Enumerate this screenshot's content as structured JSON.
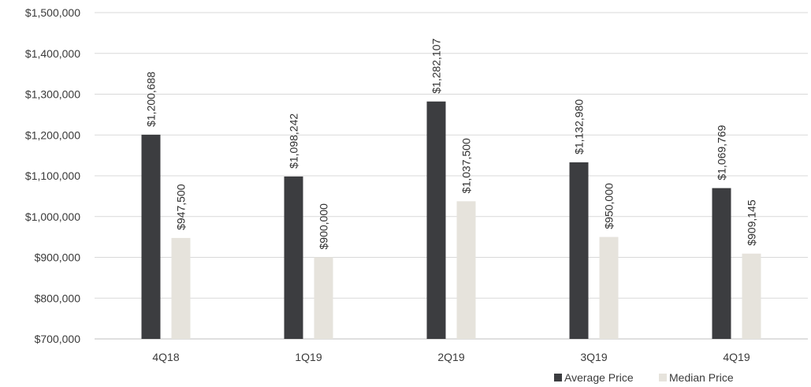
{
  "chart_data": {
    "type": "bar",
    "categories": [
      "4Q18",
      "1Q19",
      "2Q19",
      "3Q19",
      "4Q19"
    ],
    "series": [
      {
        "name": "Average Price",
        "color": "#3c3d40",
        "values": [
          1200688,
          1098242,
          1282107,
          1132980,
          1069769
        ],
        "labels": [
          "$1,200,688",
          "$1,098,242",
          "$1,282,107",
          "$1,132,980",
          "$1,069,769"
        ]
      },
      {
        "name": "Median Price",
        "color": "#e6e3dc",
        "values": [
          947500,
          900000,
          1037500,
          950000,
          909145
        ],
        "labels": [
          "$947,500",
          "$900,000",
          "$1,037,500",
          "$950,000",
          "$909,145"
        ]
      }
    ],
    "ylim": [
      700000,
      1500000
    ],
    "yticks": [
      700000,
      800000,
      900000,
      1000000,
      1100000,
      1200000,
      1300000,
      1400000,
      1500000
    ],
    "ytick_labels": [
      "$700,000",
      "$800,000",
      "$900,000",
      "$1,000,000",
      "$1,100,000",
      "$1,200,000",
      "$1,300,000",
      "$1,400,000",
      "$1,500,000"
    ],
    "grid": true,
    "legend_position": "bottom-right",
    "title": "",
    "xlabel": "",
    "ylabel": ""
  }
}
